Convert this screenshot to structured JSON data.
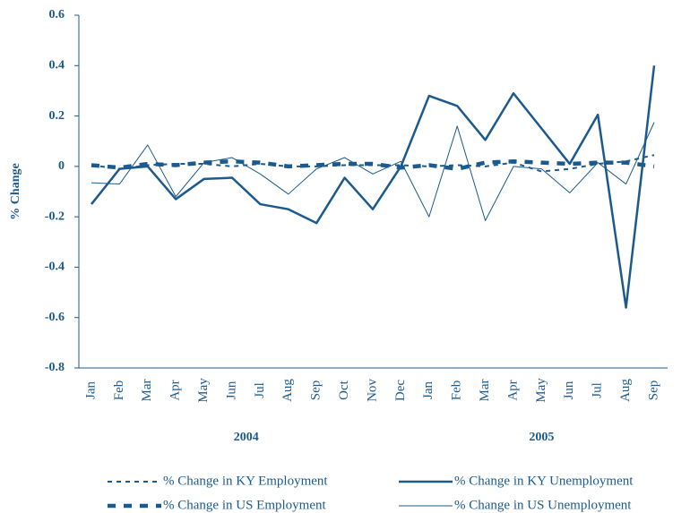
{
  "chart_data": {
    "type": "line",
    "y_label": "% Change",
    "categories": [
      "Jan",
      "Feb",
      "Mar",
      "Apr",
      "May",
      "Jun",
      "Jul",
      "Aug",
      "Sep",
      "Oct",
      "Nov",
      "Dec",
      "Jan",
      "Feb",
      "Mar",
      "Apr",
      "May",
      "Jun",
      "Jul",
      "Aug",
      "Sep"
    ],
    "x_groups": [
      {
        "label": "2004",
        "span": 12
      },
      {
        "label": "2005",
        "span": 9
      }
    ],
    "ylim": [
      -0.8,
      0.6
    ],
    "yticks": [
      0.6,
      0.4,
      0.2,
      0,
      -0.2,
      -0.4,
      -0.6,
      -0.8
    ],
    "series": [
      {
        "name": "% Change in KY Employment",
        "color": "#1b5a8e",
        "style": "thin-dashed",
        "values": [
          0.005,
          -0.01,
          0.005,
          0.01,
          0.01,
          0.0,
          0.01,
          0.0,
          0.0,
          0.005,
          0.005,
          0.005,
          0.0,
          0.005,
          0.0,
          0.015,
          -0.02,
          -0.01,
          0.01,
          0.02,
          0.045
        ]
      },
      {
        "name": "% Change in KY Unemployment",
        "color": "#1b5a8e",
        "style": "thick",
        "values": [
          -0.15,
          -0.01,
          0.0,
          -0.13,
          -0.05,
          -0.045,
          -0.15,
          -0.17,
          -0.225,
          -0.045,
          -0.17,
          0.0,
          0.28,
          0.24,
          0.105,
          0.29,
          0.15,
          0.01,
          0.205,
          -0.56,
          0.4
        ]
      },
      {
        "name": "% Change in US Employment",
        "color": "#1b5a8e",
        "style": "thick-dashed",
        "values": [
          0.005,
          -0.005,
          0.01,
          0.005,
          0.015,
          0.02,
          0.015,
          0.0,
          0.005,
          0.01,
          0.01,
          -0.005,
          0.005,
          -0.01,
          0.015,
          0.02,
          0.015,
          0.01,
          0.015,
          0.015,
          0.0
        ]
      },
      {
        "name": "% Change in US Unemployment",
        "color": "#1b5a8e",
        "style": "thin",
        "values": [
          -0.065,
          -0.07,
          0.085,
          -0.12,
          0.015,
          0.035,
          -0.03,
          -0.11,
          -0.01,
          0.035,
          -0.03,
          0.02,
          -0.2,
          0.16,
          -0.215,
          0.0,
          -0.01,
          -0.105,
          0.015,
          -0.07,
          0.175
        ]
      }
    ]
  }
}
